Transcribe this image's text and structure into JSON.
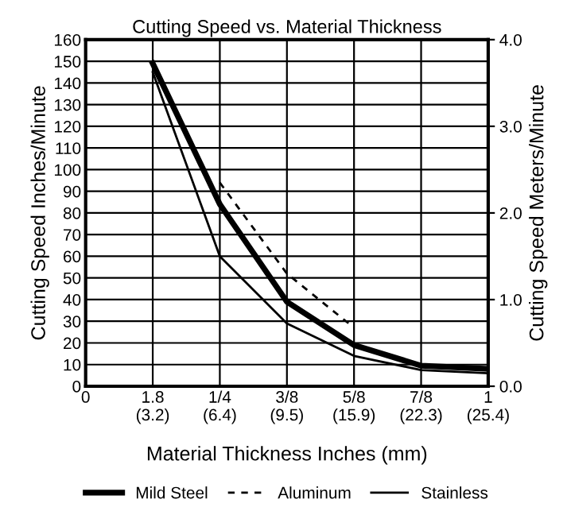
{
  "chart_data": {
    "type": "line",
    "title": "Cutting Speed vs. Material Thickness",
    "xlabel": "Material Thickness Inches (mm)",
    "ylabel": "Cutting Speed Inches/Minute",
    "y2label": "Cutting Speed Meters/Minute",
    "categories": [
      "0",
      "1.8\n(3.2)",
      "1/4\n(6.4)",
      "3/8\n(9.5)",
      "5/8\n(15.9)",
      "7/8\n(22.3)",
      "1\n(25.4)"
    ],
    "ylim": [
      0,
      160
    ],
    "yticks": [
      0,
      10,
      20,
      30,
      40,
      50,
      60,
      70,
      80,
      90,
      100,
      110,
      120,
      130,
      140,
      150,
      160
    ],
    "y2lim": [
      0,
      4
    ],
    "y2ticks": [
      {
        "value": 0,
        "label": "0.0"
      },
      {
        "value": 1,
        "label": "1.0"
      },
      {
        "value": 2,
        "label": "2.0"
      },
      {
        "value": 3,
        "label": "3.0"
      },
      {
        "value": 4,
        "label": "4.0"
      }
    ],
    "grid": true,
    "legend": "bottom",
    "marker": "none",
    "series": [
      {
        "name": "Mild Steel",
        "color": "#000000",
        "line_style": "solid",
        "values": [
          null,
          149,
          84,
          39,
          19,
          9.5,
          8
        ]
      },
      {
        "name": "Aluminum",
        "color": "#000000",
        "line_style": "dashed",
        "values": [
          null,
          null,
          94,
          52,
          27,
          null,
          null
        ]
      },
      {
        "name": "Stainless",
        "color": "#000000",
        "line_style": "solid",
        "values": [
          null,
          145,
          60,
          29,
          14,
          7.5,
          6
        ]
      }
    ]
  }
}
